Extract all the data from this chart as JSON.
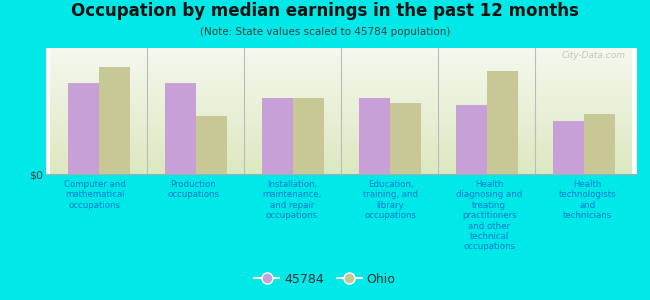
{
  "title": "Occupation by median earnings in the past 12 months",
  "subtitle": "(Note: State values scaled to 45784 population)",
  "background_color": "#00e8e8",
  "bar_color_45784": "#c8a0d8",
  "bar_color_ohio": "#c8c896",
  "categories": [
    "Computer and\nmathematical\noccupations",
    "Production\noccupations",
    "Installation,\nmaintenance,\nand repair\noccupations",
    "Education,\ntraining, and\nlibrary\noccupations",
    "Health\ndiagnosing and\ntreating\npractitioners\nand other\ntechnical\noccupations",
    "Health\ntechnologists\nand\ntechnicians"
  ],
  "values_45784": [
    0.72,
    0.72,
    0.6,
    0.6,
    0.55,
    0.42
  ],
  "values_ohio": [
    0.85,
    0.46,
    0.6,
    0.56,
    0.82,
    0.48
  ],
  "ylabel": "$0",
  "legend_labels": [
    "45784",
    "Ohio"
  ],
  "watermark": "City-Data.com",
  "plot_top_color": "#f5f8ee",
  "plot_bottom_color": "#dce8c0"
}
